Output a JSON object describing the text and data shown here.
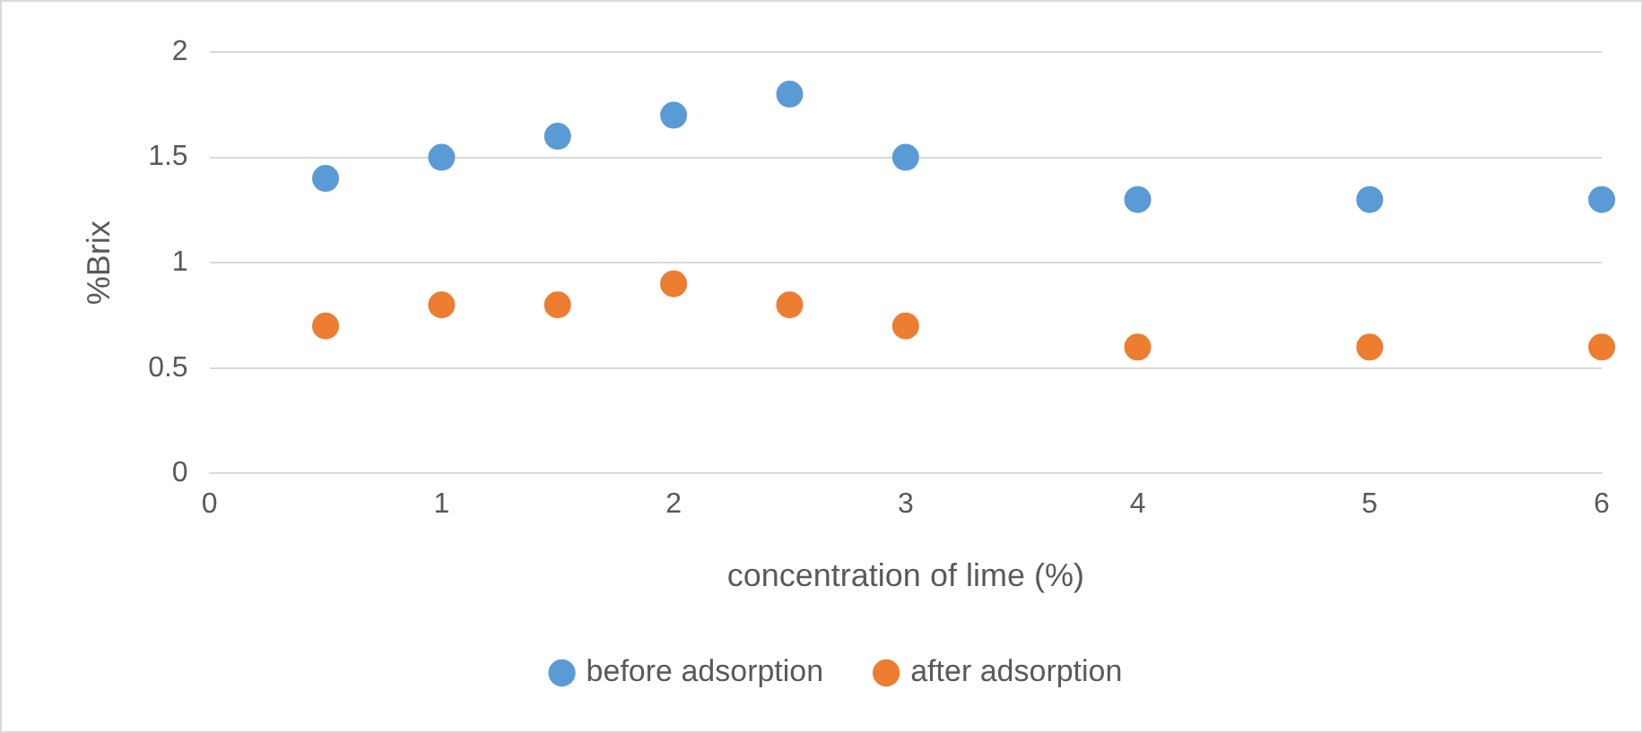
{
  "chart_data": {
    "type": "scatter",
    "xlabel": "concentration of lime (%)",
    "ylabel": "%Brix",
    "x": [
      0.5,
      1,
      1.5,
      2,
      2.5,
      3,
      4,
      5,
      6
    ],
    "series": [
      {
        "name": "before adsorption",
        "color": "#5b9bd5",
        "values": [
          1.4,
          1.5,
          1.6,
          1.7,
          1.8,
          1.5,
          1.3,
          1.3,
          1.3
        ]
      },
      {
        "name": "after adsorption",
        "color": "#ed7d31",
        "values": [
          0.7,
          0.8,
          0.8,
          0.9,
          0.8,
          0.7,
          0.6,
          0.6,
          0.6
        ]
      }
    ],
    "xlim": [
      0,
      6
    ],
    "xticks": [
      0,
      1,
      2,
      3,
      4,
      5,
      6
    ],
    "ylim": [
      0,
      2
    ],
    "yticks": [
      0,
      0.5,
      1,
      1.5,
      2
    ],
    "grid": "y",
    "legend": "bottom",
    "marker": "circle"
  }
}
